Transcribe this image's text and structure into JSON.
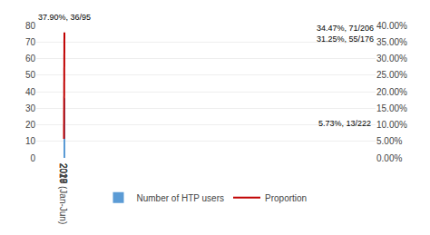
{
  "chart_data": {
    "type": "bar",
    "categories": [
      "2017",
      "2018",
      "2019",
      "2020 (Jan-Jun)"
    ],
    "series": [
      {
        "name": "Number of HTP users",
        "type": "bar",
        "color": "#5B9BD5",
        "values": [
          13,
          55,
          71,
          36
        ]
      },
      {
        "name": "Proportion",
        "type": "line",
        "axis": "y2",
        "color": "#C00000",
        "values": [
          5.73,
          31.25,
          34.47,
          37.9
        ]
      }
    ],
    "ylim": [
      0,
      80
    ],
    "yticks": [
      0,
      10,
      20,
      30,
      40,
      50,
      60,
      70,
      80
    ],
    "y2lim": [
      0,
      40
    ],
    "y2ticks": [
      {
        "value": 0.0,
        "label": "0.00%"
      },
      {
        "value": 5.0,
        "label": "5.00%"
      },
      {
        "value": 10.0,
        "label": "10.00%"
      },
      {
        "value": 15.0,
        "label": "15.00%"
      },
      {
        "value": 20.0,
        "label": "20.00%"
      },
      {
        "value": 25.0,
        "label": "25.00%"
      },
      {
        "value": 30.0,
        "label": "30.00%"
      },
      {
        "value": 35.0,
        "label": "35.00%"
      },
      {
        "value": 40.0,
        "label": "40.00%"
      }
    ],
    "annotations": [
      {
        "text": "5.73%, 13/222",
        "x": "2017",
        "y": 5.73,
        "axis": "y2"
      },
      {
        "text": "31.25%, 55/176",
        "x": "2018",
        "y": 31.25,
        "axis": "y2"
      },
      {
        "text": "34.47%, 71/206",
        "x": "2019",
        "y": 34.47,
        "axis": "y2"
      },
      {
        "text": "37.90%, 36/95",
        "x": "2020 (Jan-Jun)",
        "y": 37.9,
        "axis": "y2"
      }
    ],
    "grid": true,
    "legend": "bottom"
  }
}
